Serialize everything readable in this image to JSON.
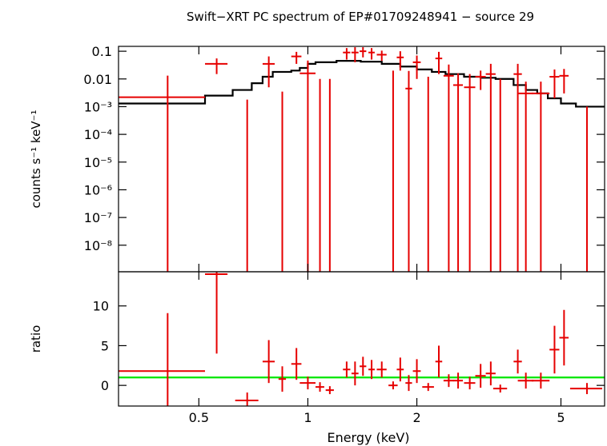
{
  "chart_data": {
    "type": "spectrum",
    "title": "Swift−XRT PC spectrum of EP#01709248941 − source 29",
    "x_label": "Energy (keV)",
    "y_label": "counts s⁻¹ keV⁻¹",
    "y2_label": "ratio",
    "x_scale": "log",
    "y_scale": "log",
    "xlim": [
      0.3,
      6.6
    ],
    "xticks": [
      0.5,
      1,
      2,
      5
    ],
    "ylim": [
      1.1e-09,
      0.15
    ],
    "yticks": [
      0.1,
      0.01,
      {
        "value": 0.001,
        "label": "10⁻³"
      },
      {
        "value": 0.0001,
        "label": "10⁻⁴"
      },
      {
        "value": 1e-05,
        "label": "10⁻⁵"
      },
      {
        "value": 1e-06,
        "label": "10⁻⁶"
      },
      {
        "value": 1e-07,
        "label": "10⁻⁷"
      },
      {
        "value": 1e-08,
        "label": "10⁻⁸"
      }
    ],
    "y2lim": [
      -2.6,
      14.3
    ],
    "y2ticks": [
      0,
      5,
      10
    ],
    "data_color": "#e60000",
    "model_color": "#000000",
    "reference_color": "#00e600",
    "reference": 1,
    "x": [
      0.41,
      0.56,
      0.68,
      0.78,
      0.85,
      0.93,
      1.0,
      1.08,
      1.15,
      1.28,
      1.35,
      1.42,
      1.5,
      1.6,
      1.72,
      1.8,
      1.9,
      2.0,
      2.15,
      2.3,
      2.45,
      2.6,
      2.8,
      3.0,
      3.2,
      3.4,
      3.8,
      4.0,
      4.4,
      4.8,
      5.1,
      5.9
    ],
    "xerr": [
      0.11,
      0.04,
      0.05,
      0.03,
      0.02,
      0.03,
      0.05,
      0.03,
      0.03,
      0.03,
      0.03,
      0.03,
      0.03,
      0.05,
      0.05,
      0.04,
      0.04,
      0.05,
      0.08,
      0.05,
      0.08,
      0.08,
      0.1,
      0.1,
      0.1,
      0.15,
      0.1,
      0.2,
      0.25,
      0.15,
      0.15,
      0.6
    ],
    "values": [
      0.0022,
      0.035,
      1e-10,
      0.035,
      1e-10,
      0.065,
      0.016,
      1e-10,
      1e-10,
      0.09,
      0.09,
      0.1,
      0.09,
      0.075,
      1e-10,
      0.06,
      0.0045,
      0.04,
      1e-10,
      0.055,
      0.013,
      0.006,
      0.005,
      0.012,
      0.015,
      1e-10,
      0.015,
      0.003,
      0.003,
      0.012,
      0.013,
      1e-10
    ],
    "errors": [
      0.011,
      0.02,
      0.0018,
      0.03,
      0.0035,
      0.03,
      0.03,
      0.01,
      0.01,
      0.04,
      0.05,
      0.04,
      0.04,
      0.03,
      0.02,
      0.04,
      0.015,
      0.03,
      0.012,
      0.04,
      0.02,
      0.01,
      0.01,
      0.008,
      0.02,
      0.01,
      0.02,
      0.005,
      0.005,
      0.01,
      0.01,
      0.001
    ],
    "ratio": [
      1.8,
      14,
      -1.9,
      3,
      0.8,
      2.7,
      0.3,
      -0.2,
      -0.6,
      2,
      1.5,
      2.4,
      2,
      2,
      0,
      2,
      0.3,
      1.8,
      -0.2,
      3,
      0.6,
      0.6,
      0.3,
      1.2,
      1.5,
      -0.4,
      3,
      0.6,
      0.6,
      4.5,
      6,
      -0.4
    ],
    "ratio_errors": [
      7.3,
      10,
      1,
      2.7,
      1.6,
      2,
      0.8,
      0.6,
      0.5,
      1,
      1.5,
      1.2,
      1.2,
      1,
      0.5,
      1.5,
      1,
      1.5,
      0.5,
      2,
      0.8,
      1,
      0.8,
      1.5,
      1.5,
      0.5,
      1.5,
      1,
      1,
      3,
      3.5,
      0.7
    ],
    "model_edges": [
      0.3,
      0.52,
      0.62,
      0.7,
      0.75,
      0.8,
      0.9,
      0.95,
      1.0,
      1.05,
      1.2,
      1.4,
      1.6,
      1.8,
      2.0,
      2.2,
      2.4,
      2.7,
      3.0,
      3.3,
      3.7,
      4.0,
      4.3,
      4.6,
      5.0,
      5.5,
      6.6
    ],
    "model": [
      0.0013,
      0.0025,
      0.004,
      0.007,
      0.012,
      0.018,
      0.02,
      0.025,
      0.035,
      0.04,
      0.045,
      0.042,
      0.035,
      0.028,
      0.022,
      0.018,
      0.015,
      0.012,
      0.011,
      0.01,
      0.006,
      0.004,
      0.003,
      0.002,
      0.0013,
      0.001
    ]
  }
}
